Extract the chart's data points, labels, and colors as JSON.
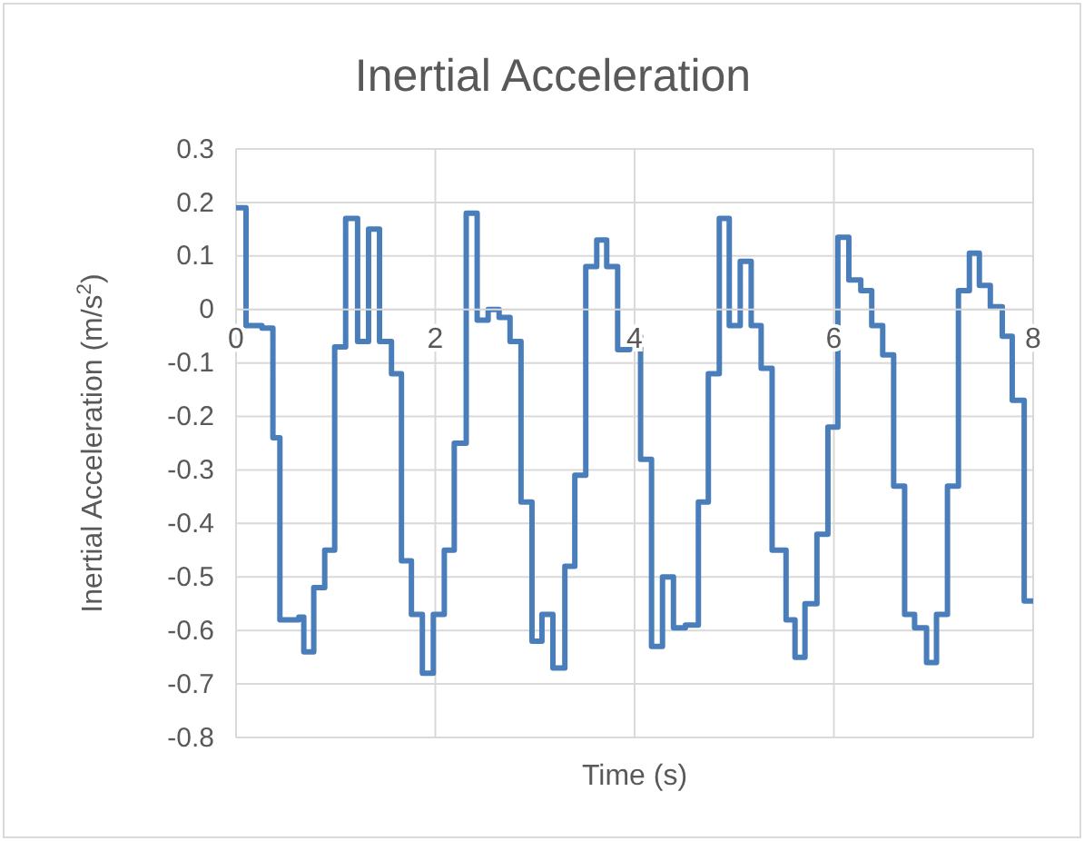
{
  "chart_data": {
    "type": "step",
    "title": "Inertial Acceleration",
    "xlabel": "Time (s)",
    "ylabel": "Inertial Acceleration (m/s$^{2}$)",
    "xlim": [
      0,
      8
    ],
    "xticks": [
      0,
      2,
      4,
      6,
      8
    ],
    "ylim": [
      -0.8,
      0.3
    ],
    "yticks": [
      {
        "value": 0.3,
        "label": "0.3"
      },
      {
        "value": 0.2,
        "label": "0.2"
      },
      {
        "value": 0.1,
        "label": "0.1"
      },
      {
        "value": 0,
        "label": "0"
      },
      {
        "value": -0.1,
        "label": "-0.1"
      },
      {
        "value": -0.2,
        "label": "-0.2"
      },
      {
        "value": -0.3,
        "label": "-0.3"
      },
      {
        "value": -0.4,
        "label": "-0.4"
      },
      {
        "value": -0.5,
        "label": "-0.5"
      },
      {
        "value": -0.6,
        "label": "-0.6"
      },
      {
        "value": -0.7,
        "label": "-0.7"
      },
      {
        "value": -0.8,
        "label": "-0.8"
      }
    ],
    "grid": true,
    "marker": "none",
    "line_style": "solid",
    "series": [
      {
        "color": "#4a7ebb",
        "x": [
          0,
          0.1,
          0.26,
          0.37,
          0.44,
          0.63,
          0.68,
          0.78,
          0.89,
          0.99,
          1.1,
          1.22,
          1.33,
          1.44,
          1.56,
          1.66,
          1.76,
          1.87,
          1.98,
          2.09,
          2.19,
          2.31,
          2.42,
          2.53,
          2.64,
          2.75,
          2.86,
          2.97,
          3.07,
          3.18,
          3.3,
          3.4,
          3.51,
          3.62,
          3.72,
          3.83,
          3.95,
          4.06,
          4.17,
          4.28,
          4.39,
          4.51,
          4.64,
          4.74,
          4.85,
          4.95,
          5.06,
          5.17,
          5.27,
          5.38,
          5.52,
          5.61,
          5.71,
          5.83,
          5.94,
          6.04,
          6.15,
          6.27,
          6.38,
          6.49,
          6.6,
          6.71,
          6.81,
          6.93,
          7.03,
          7.14,
          7.25,
          7.36,
          7.46,
          7.57,
          7.69,
          7.79,
          7.91,
          8
        ],
        "values": [
          0.19,
          -0.03,
          -0.035,
          -0.24,
          -0.58,
          -0.575,
          -0.64,
          -0.52,
          -0.45,
          -0.07,
          0.17,
          -0.06,
          0.15,
          -0.06,
          -0.12,
          -0.47,
          -0.57,
          -0.68,
          -0.57,
          -0.45,
          -0.25,
          0.18,
          -0.02,
          0,
          -0.015,
          -0.06,
          -0.36,
          -0.62,
          -0.57,
          -0.67,
          -0.48,
          -0.31,
          0.08,
          0.13,
          0.08,
          -0.075,
          -0.05,
          -0.28,
          -0.63,
          -0.5,
          -0.595,
          -0.59,
          -0.36,
          -0.12,
          0.17,
          -0.03,
          0.09,
          -0.03,
          -0.11,
          -0.45,
          -0.58,
          -0.65,
          -0.55,
          -0.42,
          -0.22,
          0.135,
          0.055,
          0.035,
          -0.03,
          -0.085,
          -0.33,
          -0.57,
          -0.595,
          -0.66,
          -0.57,
          -0.33,
          0.035,
          0.105,
          0.045,
          0.005,
          -0.05,
          -0.17,
          -0.545,
          -0.545
        ]
      }
    ]
  }
}
